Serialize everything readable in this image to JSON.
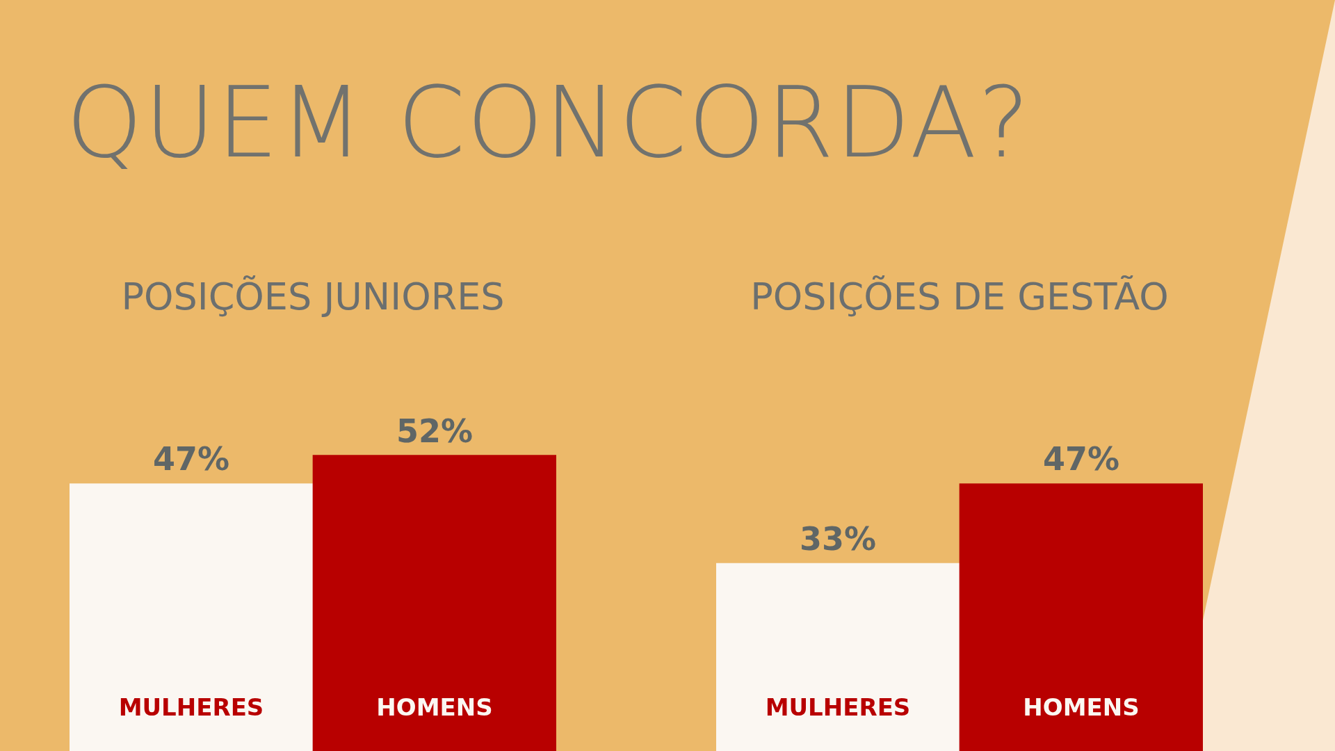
{
  "chart_data": [
    {
      "type": "bar",
      "title": "QUEM CONCORDA?",
      "subtitle": "POSIÇÕES JUNIORES",
      "categories": [
        "MULHERES",
        "HOMENS"
      ],
      "values": [
        47,
        52
      ],
      "value_labels": [
        "47%",
        "52%"
      ],
      "colors": [
        "#fbf7f2",
        "#b80000"
      ]
    },
    {
      "type": "bar",
      "subtitle": "POSIÇÕES DE GESTÃO",
      "categories": [
        "MULHERES",
        "HOMENS"
      ],
      "values": [
        33,
        47
      ],
      "value_labels": [
        "33%",
        "47%"
      ],
      "colors": [
        "#fbf7f2",
        "#b80000"
      ]
    }
  ]
}
